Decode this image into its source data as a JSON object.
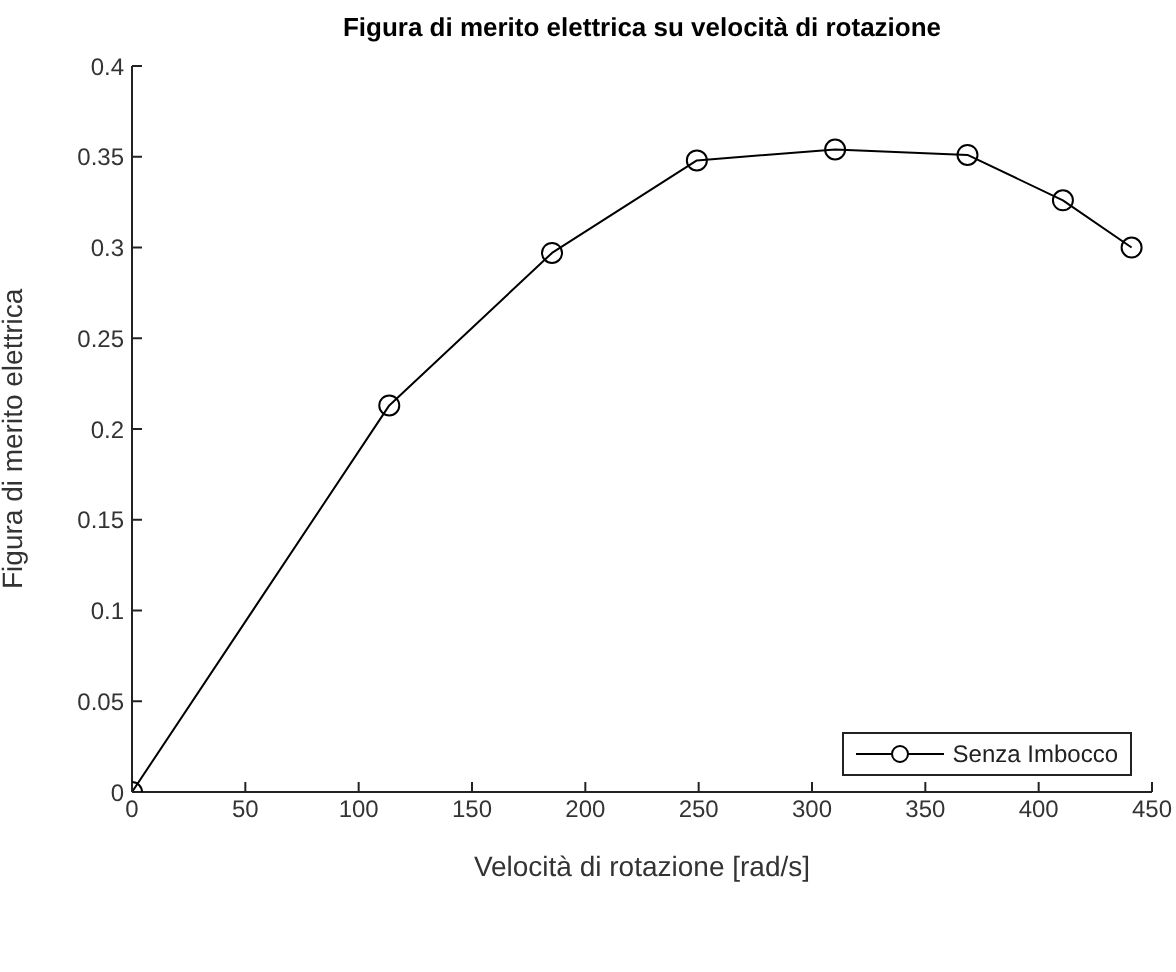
{
  "chart_data": {
    "type": "line",
    "title": "Figura di merito elettrica su velocità di rotazione",
    "xlabel": "Velocità di rotazione [rad/s]",
    "ylabel": "Figura di merito elettrica",
    "x": [
      0,
      113.5,
      185.3,
      249.2,
      310.2,
      368.6,
      410.7,
      441
    ],
    "series": [
      {
        "name": "Senza Imbocco",
        "color": "#000000",
        "values": [
          0,
          0.213,
          0.297,
          0.348,
          0.354,
          0.351,
          0.326,
          0.3
        ]
      }
    ],
    "xlim": [
      0,
      450
    ],
    "xticks": [
      0,
      50,
      100,
      150,
      200,
      250,
      300,
      350,
      400,
      450
    ],
    "ylim": [
      0,
      0.4
    ],
    "yticks": [
      0,
      0.05,
      0.1,
      0.15,
      0.2,
      0.25,
      0.3,
      0.35,
      0.4
    ],
    "grid": false,
    "legend": "bottom right",
    "marker": "circle",
    "line_style": "solid"
  }
}
